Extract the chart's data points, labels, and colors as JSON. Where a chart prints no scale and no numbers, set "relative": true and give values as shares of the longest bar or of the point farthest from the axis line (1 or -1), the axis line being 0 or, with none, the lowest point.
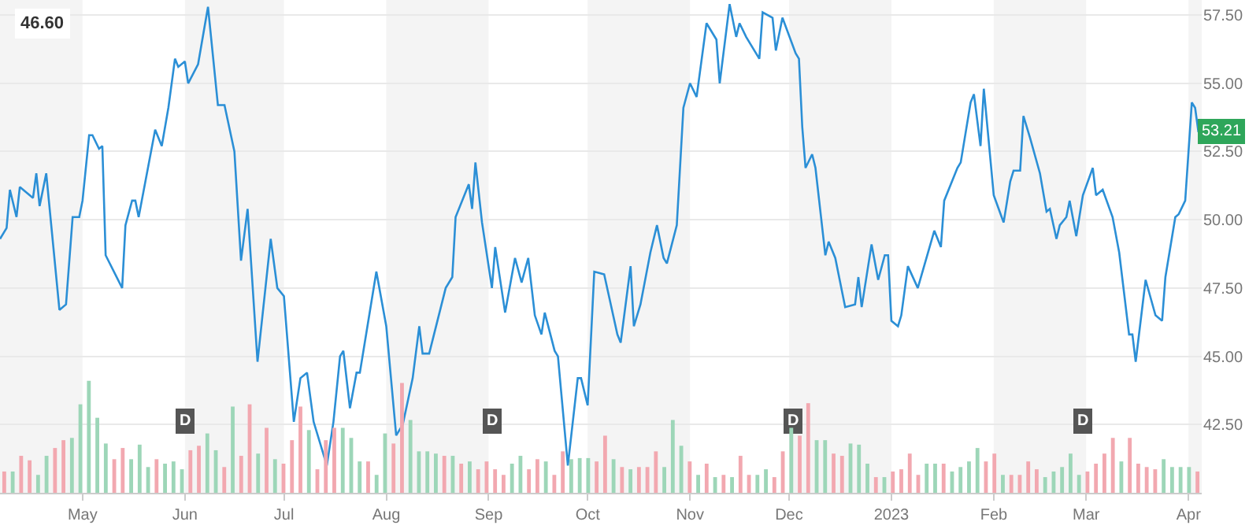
{
  "chart_data": [
    {
      "type": "line",
      "x": [
        "2022-04-06",
        "2022-04-08",
        "2022-04-09",
        "2022-04-11",
        "2022-04-12",
        "2022-04-16",
        "2022-04-17",
        "2022-04-18",
        "2022-04-20",
        "2022-04-24",
        "2022-04-26",
        "2022-04-28",
        "2022-04-30",
        "2022-05-01",
        "2022-05-03",
        "2022-05-04",
        "2022-05-06",
        "2022-05-07",
        "2022-05-08",
        "2022-05-13",
        "2022-05-14",
        "2022-05-16",
        "2022-05-17",
        "2022-05-18",
        "2022-05-23",
        "2022-05-25",
        "2022-05-27",
        "2022-05-29",
        "2022-05-30",
        "2022-06-01",
        "2022-06-02",
        "2022-06-05",
        "2022-06-08",
        "2022-06-11",
        "2022-06-13",
        "2022-06-16",
        "2022-06-18",
        "2022-06-20",
        "2022-06-23",
        "2022-06-27",
        "2022-06-29",
        "2022-07-01",
        "2022-07-04",
        "2022-07-06",
        "2022-07-08",
        "2022-07-10",
        "2022-07-14",
        "2022-07-16",
        "2022-07-18",
        "2022-07-19",
        "2022-07-21",
        "2022-07-23",
        "2022-07-24",
        "2022-07-29",
        "2022-08-01",
        "2022-08-04",
        "2022-08-06",
        "2022-08-09",
        "2022-08-11",
        "2022-08-12",
        "2022-08-14",
        "2022-08-19",
        "2022-08-21",
        "2022-08-22",
        "2022-08-26",
        "2022-08-27",
        "2022-08-28",
        "2022-08-30",
        "2022-09-02",
        "2022-09-03",
        "2022-09-06",
        "2022-09-09",
        "2022-09-11",
        "2022-09-13",
        "2022-09-15",
        "2022-09-17",
        "2022-09-18",
        "2022-09-21",
        "2022-09-22",
        "2022-09-25",
        "2022-09-28",
        "2022-09-29",
        "2022-10-01",
        "2022-10-03",
        "2022-10-06",
        "2022-10-10",
        "2022-10-11",
        "2022-10-14",
        "2022-10-15",
        "2022-10-17",
        "2022-10-20",
        "2022-10-22",
        "2022-10-24",
        "2022-10-25",
        "2022-10-28",
        "2022-10-30",
        "2022-11-01",
        "2022-11-03",
        "2022-11-06",
        "2022-11-09",
        "2022-11-10",
        "2022-11-13",
        "2022-11-15",
        "2022-11-16",
        "2022-11-18",
        "2022-11-22",
        "2022-11-23",
        "2022-11-26",
        "2022-11-27",
        "2022-11-29",
        "2022-12-03",
        "2022-12-04",
        "2022-12-05",
        "2022-12-06",
        "2022-12-08",
        "2022-12-09",
        "2022-12-12",
        "2022-12-13",
        "2022-12-15",
        "2022-12-18",
        "2022-12-21",
        "2022-12-22",
        "2022-12-23",
        "2022-12-26",
        "2022-12-28",
        "2022-12-30",
        "2022-12-31",
        "2023-01-01",
        "2023-01-03",
        "2023-01-04",
        "2023-01-06",
        "2023-01-09",
        "2023-01-14",
        "2023-01-16",
        "2023-01-17",
        "2023-01-21",
        "2023-01-22",
        "2023-01-25",
        "2023-01-26",
        "2023-01-28",
        "2023-01-29",
        "2023-02-01",
        "2023-02-04",
        "2023-02-06",
        "2023-02-07",
        "2023-02-09",
        "2023-02-10",
        "2023-02-12",
        "2023-02-15",
        "2023-02-17",
        "2023-02-18",
        "2023-02-20",
        "2023-02-21",
        "2023-02-23",
        "2023-02-24",
        "2023-02-26",
        "2023-02-28",
        "2023-03-03",
        "2023-03-04",
        "2023-03-06",
        "2023-03-09",
        "2023-03-11",
        "2023-03-12",
        "2023-03-14",
        "2023-03-15",
        "2023-03-16",
        "2023-03-19",
        "2023-03-22",
        "2023-03-24",
        "2023-03-25",
        "2023-03-28",
        "2023-03-29",
        "2023-03-31",
        "2023-04-02",
        "2023-04-03",
        "2023-04-04"
      ],
      "series": [
        {
          "color": "#2b8fd6",
          "values": [
            49.3,
            49.7,
            51.1,
            50.1,
            51.2,
            50.8,
            51.7,
            50.5,
            51.7,
            46.7,
            46.9,
            50.1,
            50.1,
            50.7,
            53.1,
            53.1,
            52.6,
            52.7,
            48.7,
            47.5,
            49.8,
            50.7,
            50.7,
            50.1,
            53.3,
            52.7,
            54.1,
            55.9,
            55.6,
            55.8,
            55.0,
            55.7,
            57.8,
            54.2,
            54.2,
            52.5,
            48.5,
            50.4,
            44.8,
            49.3,
            47.5,
            47.2,
            42.6,
            44.2,
            44.4,
            42.6,
            41.0,
            42.6,
            45.0,
            45.2,
            43.1,
            44.4,
            44.4,
            48.1,
            46.1,
            42.1,
            42.5,
            44.2,
            46.1,
            45.1,
            45.1,
            47.5,
            47.9,
            50.1,
            51.3,
            50.4,
            52.1,
            49.9,
            47.5,
            49.0,
            46.6,
            48.6,
            47.7,
            48.6,
            46.5,
            45.8,
            46.6,
            45.2,
            45.0,
            41.0,
            44.2,
            44.2,
            43.2,
            48.1,
            48.0,
            45.8,
            45.5,
            48.3,
            46.1,
            46.9,
            48.8,
            49.8,
            48.6,
            48.4,
            49.8,
            54.1,
            55.0,
            54.5,
            57.2,
            56.6,
            55.0,
            57.9,
            56.7,
            57.2,
            56.7,
            55.9,
            57.6,
            57.4,
            56.2,
            57.4,
            56.1,
            55.9,
            53.4,
            51.9,
            52.4,
            51.9,
            48.7,
            49.2,
            48.6,
            46.8,
            46.9,
            47.9,
            46.8,
            49.1,
            47.8,
            48.7,
            48.7,
            46.3,
            46.1,
            46.5,
            48.3,
            47.5,
            49.6,
            49.0,
            50.7,
            51.9,
            52.1,
            54.3,
            54.6,
            52.7,
            54.8,
            50.9,
            49.9,
            51.4,
            51.8,
            51.8,
            53.8,
            53.0,
            51.7,
            50.3,
            50.4,
            49.3,
            49.8,
            50.1,
            50.7,
            49.4,
            50.9,
            51.9,
            50.9,
            51.1,
            50.1,
            48.8,
            47.8,
            45.8,
            45.8,
            44.8,
            47.8,
            46.5,
            46.3,
            47.9,
            50.1,
            50.2,
            50.7,
            54.3,
            54.1,
            53.21
          ]
        }
      ],
      "xlim": [
        "2022-04-06",
        "2023-04-05"
      ],
      "xticks": [
        {
          "value": "2022-05-01",
          "label": "May"
        },
        {
          "value": "2022-06-01",
          "label": "Jun"
        },
        {
          "value": "2022-07-01",
          "label": "Jul"
        },
        {
          "value": "2022-08-01",
          "label": "Aug"
        },
        {
          "value": "2022-09-01",
          "label": "Sep"
        },
        {
          "value": "2022-10-01",
          "label": "Oct"
        },
        {
          "value": "2022-11-01",
          "label": "Nov"
        },
        {
          "value": "2022-12-01",
          "label": "Dec"
        },
        {
          "value": "2023-01-01",
          "label": "2023"
        },
        {
          "value": "2023-02-01",
          "label": "Feb"
        },
        {
          "value": "2023-03-01",
          "label": "Mar"
        },
        {
          "value": "2023-04-01",
          "label": "Apr"
        }
      ],
      "ylim": [
        40,
        58.05
      ],
      "yticks": [
        {
          "value": 42.5,
          "label": "42.50"
        },
        {
          "value": 45,
          "label": "45.00"
        },
        {
          "value": 47.5,
          "label": "47.50"
        },
        {
          "value": 50,
          "label": "50.00"
        },
        {
          "value": 52.5,
          "label": "52.50"
        },
        {
          "value": 55,
          "label": "55.00"
        },
        {
          "value": 57.5,
          "label": "57.50"
        }
      ],
      "grid": "y",
      "legend": false,
      "marker": "none",
      "line_style": "solid",
      "bands": [
        {
          "axis": "x",
          "from": "2022-04-06",
          "to": "2022-05-01",
          "color": "#f4f4f4"
        },
        {
          "axis": "x",
          "from": "2022-06-01",
          "to": "2022-07-01",
          "color": "#f4f4f4"
        },
        {
          "axis": "x",
          "from": "2022-08-01",
          "to": "2022-09-01",
          "color": "#f4f4f4"
        },
        {
          "axis": "x",
          "from": "2022-10-01",
          "to": "2022-11-01",
          "color": "#f4f4f4"
        },
        {
          "axis": "x",
          "from": "2022-12-01",
          "to": "2023-01-01",
          "color": "#f4f4f4"
        },
        {
          "axis": "x",
          "from": "2023-02-01",
          "to": "2023-03-01",
          "color": "#f4f4f4"
        },
        {
          "axis": "x",
          "from": "2023-04-01",
          "to": "2023-04-05",
          "color": "#f4f4f4"
        }
      ],
      "annotations": [
        "46.60",
        {
          "text": "53.21",
          "x": "2023-04-04",
          "y": 53.21
        },
        {
          "text": "D",
          "x": "2022-06-01",
          "y": 42.6
        },
        {
          "text": "D",
          "x": "2022-09-02",
          "y": 42.6
        },
        {
          "text": "D",
          "x": "2022-12-02",
          "y": 42.6
        },
        {
          "text": "D",
          "x": "2023-02-28",
          "y": 42.6
        }
      ]
    },
    {
      "type": "bar",
      "relative": true,
      "categories": [
        null,
        null,
        null,
        null,
        null,
        null,
        null,
        null,
        null,
        null,
        null,
        null,
        null,
        null,
        null,
        null,
        null,
        null,
        null,
        null,
        null,
        null,
        null,
        null,
        null,
        null,
        null,
        null,
        null,
        null,
        null,
        null,
        null,
        null,
        null,
        null,
        null,
        null,
        null,
        null,
        null,
        null,
        null,
        null,
        null,
        null,
        null,
        null,
        null,
        null,
        null,
        null,
        null,
        null,
        null,
        null,
        null,
        null,
        null,
        null,
        null,
        null,
        null,
        null,
        null,
        null,
        null,
        null,
        null,
        null,
        null,
        null,
        null,
        null,
        null,
        null,
        null,
        null,
        null,
        null,
        null,
        null,
        null,
        null,
        null,
        null,
        null,
        null,
        null,
        null,
        null,
        null,
        null,
        null,
        null,
        null,
        null,
        null,
        null,
        null,
        null,
        null,
        null,
        null,
        null,
        null,
        null,
        null,
        null,
        null,
        null,
        null,
        null,
        null,
        null,
        null,
        null,
        null,
        null,
        null,
        null,
        null,
        null,
        null,
        null,
        null,
        null,
        null,
        null,
        null,
        null,
        null,
        null,
        null,
        null,
        null,
        null,
        null,
        null,
        null,
        null,
        null
      ],
      "values": [
        0.19,
        0.19,
        0.33,
        0.29,
        0.16,
        0.33,
        0.4,
        0.47,
        0.49,
        0.79,
        1.0,
        0.67,
        0.44,
        0.3,
        0.4,
        0.3,
        0.43,
        0.23,
        0.3,
        0.26,
        0.28,
        0.21,
        0.38,
        0.42,
        0.53,
        0.38,
        0.23,
        0.77,
        0.33,
        0.79,
        0.35,
        0.58,
        0.3,
        0.26,
        0.47,
        0.77,
        0.56,
        0.21,
        0.47,
        0.58,
        0.58,
        0.49,
        0.28,
        0.28,
        0.16,
        0.53,
        0.44,
        0.98,
        0.65,
        0.37,
        0.37,
        0.35,
        0.33,
        0.33,
        0.26,
        0.28,
        0.21,
        0.28,
        0.21,
        0.16,
        0.26,
        0.33,
        0.21,
        0.3,
        0.28,
        0.16,
        0.37,
        0.3,
        0.31,
        0.31,
        0.28,
        0.51,
        0.3,
        0.23,
        0.21,
        0.23,
        0.23,
        0.37,
        0.23,
        0.65,
        0.42,
        0.28,
        0.16,
        0.26,
        0.14,
        0.16,
        0.14,
        0.33,
        0.16,
        0.16,
        0.21,
        0.14,
        0.37,
        0.58,
        0.51,
        0.8,
        0.47,
        0.47,
        0.35,
        0.33,
        0.44,
        0.43,
        0.26,
        0.14,
        0.14,
        0.19,
        0.21,
        0.35,
        0.16,
        0.26,
        0.26,
        0.26,
        0.19,
        0.23,
        0.28,
        0.4,
        0.28,
        0.35,
        0.16,
        0.16,
        0.16,
        0.28,
        0.21,
        0.14,
        0.19,
        0.23,
        0.35,
        0.16,
        0.19,
        0.26,
        0.35,
        0.49,
        0.28,
        0.49,
        0.26,
        0.23,
        0.21,
        0.3,
        0.23,
        0.23,
        0.23,
        0.19
      ],
      "colors": [
        "#f2a8b0",
        "#9dd6b8",
        "#f2a8b0",
        "#f2a8b0",
        "#9dd6b8",
        "#9dd6b8",
        "#f2a8b0",
        "#f2a8b0",
        "#9dd6b8",
        "#9dd6b8",
        "#9dd6b8",
        "#9dd6b8",
        "#9dd6b8",
        "#f2a8b0",
        "#f2a8b0",
        "#9dd6b8",
        "#9dd6b8",
        "#9dd6b8",
        "#f2a8b0",
        "#9dd6b8",
        "#9dd6b8",
        "#9dd6b8",
        "#f2a8b0",
        "#f2a8b0",
        "#9dd6b8",
        "#9dd6b8",
        "#f2a8b0",
        "#9dd6b8",
        "#f2a8b0",
        "#f2a8b0",
        "#9dd6b8",
        "#f2a8b0",
        "#9dd6b8",
        "#f2a8b0",
        "#f2a8b0",
        "#f2a8b0",
        "#9dd6b8",
        "#f2a8b0",
        "#f2a8b0",
        "#f2a8b0",
        "#9dd6b8",
        "#9dd6b8",
        "#9dd6b8",
        "#f2a8b0",
        "#9dd6b8",
        "#9dd6b8",
        "#f2a8b0",
        "#f2a8b0",
        "#9dd6b8",
        "#9dd6b8",
        "#9dd6b8",
        "#9dd6b8",
        "#f2a8b0",
        "#9dd6b8",
        "#f2a8b0",
        "#9dd6b8",
        "#f2a8b0",
        "#f2a8b0",
        "#f2a8b0",
        "#f2a8b0",
        "#9dd6b8",
        "#9dd6b8",
        "#f2a8b0",
        "#f2a8b0",
        "#9dd6b8",
        "#f2a8b0",
        "#f2a8b0",
        "#9dd6b8",
        "#9dd6b8",
        "#9dd6b8",
        "#f2a8b0",
        "#f2a8b0",
        "#9dd6b8",
        "#f2a8b0",
        "#9dd6b8",
        "#f2a8b0",
        "#f2a8b0",
        "#f2a8b0",
        "#9dd6b8",
        "#9dd6b8",
        "#9dd6b8",
        "#f2a8b0",
        "#9dd6b8",
        "#f2a8b0",
        "#9dd6b8",
        "#f2a8b0",
        "#9dd6b8",
        "#f2a8b0",
        "#f2a8b0",
        "#9dd6b8",
        "#9dd6b8",
        "#f2a8b0",
        "#f2a8b0",
        "#9dd6b8",
        "#f2a8b0",
        "#f2a8b0",
        "#9dd6b8",
        "#9dd6b8",
        "#f2a8b0",
        "#f2a8b0",
        "#9dd6b8",
        "#9dd6b8",
        "#9dd6b8",
        "#f2a8b0",
        "#9dd6b8",
        "#f2a8b0",
        "#f2a8b0",
        "#f2a8b0",
        "#f2a8b0",
        "#9dd6b8",
        "#9dd6b8",
        "#f2a8b0",
        "#9dd6b8",
        "#9dd6b8",
        "#9dd6b8",
        "#9dd6b8",
        "#f2a8b0",
        "#f2a8b0",
        "#9dd6b8",
        "#f2a8b0",
        "#f2a8b0",
        "#f2a8b0",
        "#f2a8b0",
        "#9dd6b8",
        "#9dd6b8",
        "#9dd6b8",
        "#9dd6b8",
        "#9dd6b8",
        "#f2a8b0",
        "#f2a8b0",
        "#f2a8b0",
        "#f2a8b0",
        "#9dd6b8",
        "#f2a8b0",
        "#f2a8b0",
        "#f2a8b0",
        "#f2a8b0",
        "#9dd6b8",
        "#9dd6b8",
        "#9dd6b8",
        "#9dd6b8",
        "#f2a8b0"
      ]
    }
  ]
}
